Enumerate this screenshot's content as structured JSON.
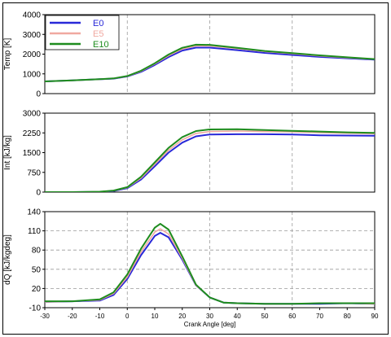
{
  "chart_data": [
    {
      "type": "line",
      "ylabel": "Temp [K]",
      "ylim": [
        0,
        4000
      ],
      "yticks": [
        0,
        1000,
        2000,
        3000,
        4000
      ],
      "xlim": [
        -30,
        90
      ],
      "grid": "vertical-dashed",
      "legend": {
        "placement": "top-left",
        "entries": [
          {
            "label": "E0",
            "color": "#2828d8"
          },
          {
            "label": "E5",
            "color": "#f0a8a0"
          },
          {
            "label": "E10",
            "color": "#1e8c1e"
          }
        ]
      },
      "series": [
        {
          "name": "E0",
          "color": "#2828d8",
          "x": [
            -30,
            -20,
            -10,
            -5,
            0,
            5,
            10,
            15,
            20,
            25,
            30,
            40,
            50,
            60,
            70,
            80,
            90
          ],
          "y": [
            620,
            670,
            730,
            760,
            870,
            1100,
            1450,
            1850,
            2180,
            2330,
            2330,
            2200,
            2060,
            1960,
            1860,
            1790,
            1720
          ]
        },
        {
          "name": "E5",
          "color": "#f0a8a0",
          "x": [
            -30,
            -20,
            -10,
            -5,
            0,
            5,
            10,
            15,
            20,
            25,
            30,
            40,
            50,
            60,
            70,
            80,
            90
          ],
          "y": [
            620,
            670,
            730,
            765,
            880,
            1130,
            1500,
            1920,
            2260,
            2420,
            2420,
            2280,
            2130,
            2020,
            1910,
            1820,
            1740
          ]
        },
        {
          "name": "E10",
          "color": "#1e8c1e",
          "x": [
            -30,
            -20,
            -10,
            -5,
            0,
            5,
            10,
            15,
            20,
            25,
            30,
            40,
            50,
            60,
            70,
            80,
            90
          ],
          "y": [
            620,
            670,
            730,
            770,
            890,
            1160,
            1540,
            1980,
            2320,
            2480,
            2470,
            2320,
            2160,
            2050,
            1940,
            1840,
            1750
          ]
        }
      ]
    },
    {
      "type": "line",
      "ylabel": "Int [kJ/kg]",
      "ylim": [
        0,
        3000
      ],
      "yticks": [
        0,
        750,
        1500,
        2250,
        3000
      ],
      "xlim": [
        -30,
        90
      ],
      "grid": "vertical-dashed",
      "series": [
        {
          "name": "E0",
          "color": "#2828d8",
          "x": [
            -30,
            -20,
            -10,
            -5,
            0,
            5,
            10,
            15,
            20,
            25,
            30,
            40,
            50,
            60,
            70,
            80,
            90
          ],
          "y": [
            0,
            0,
            10,
            40,
            150,
            480,
            980,
            1500,
            1880,
            2120,
            2190,
            2200,
            2200,
            2190,
            2160,
            2150,
            2140
          ]
        },
        {
          "name": "E5",
          "color": "#f0a8a0",
          "x": [
            -30,
            -20,
            -10,
            -5,
            0,
            5,
            10,
            15,
            20,
            25,
            30,
            40,
            50,
            60,
            70,
            80,
            90
          ],
          "y": [
            0,
            0,
            12,
            50,
            170,
            530,
            1060,
            1590,
            1990,
            2230,
            2300,
            2320,
            2300,
            2290,
            2260,
            2240,
            2220
          ]
        },
        {
          "name": "E10",
          "color": "#1e8c1e",
          "x": [
            -30,
            -20,
            -10,
            -5,
            0,
            5,
            10,
            15,
            20,
            25,
            30,
            40,
            50,
            60,
            70,
            80,
            90
          ],
          "y": [
            0,
            0,
            15,
            60,
            190,
            580,
            1130,
            1680,
            2090,
            2320,
            2380,
            2390,
            2360,
            2330,
            2300,
            2270,
            2250
          ]
        }
      ]
    },
    {
      "type": "line",
      "ylabel": "dQ [kJ/kgdeg]",
      "xlabel": "Crank Angle [deg]",
      "ylim": [
        -10,
        140
      ],
      "yticks": [
        -10,
        20,
        50,
        80,
        110,
        140
      ],
      "xlim": [
        -30,
        90
      ],
      "xticks": [
        -30,
        -20,
        -10,
        0,
        10,
        20,
        30,
        40,
        50,
        60,
        70,
        80,
        90
      ],
      "grid": "both-dashed",
      "series": [
        {
          "name": "E0",
          "color": "#2828d8",
          "x": [
            -30,
            -20,
            -10,
            -5,
            0,
            5,
            10,
            12,
            15,
            20,
            25,
            30,
            35,
            40,
            50,
            60,
            70,
            80,
            90
          ],
          "y": [
            -1,
            0,
            1,
            10,
            35,
            72,
            102,
            107,
            100,
            65,
            25,
            6,
            -2,
            -3,
            -4,
            -4,
            -4,
            -3,
            -4
          ]
        },
        {
          "name": "E5",
          "color": "#f0a8a0",
          "x": [
            -30,
            -20,
            -10,
            -5,
            0,
            5,
            10,
            12,
            15,
            20,
            25,
            30,
            35,
            40,
            50,
            60,
            70,
            80,
            90
          ],
          "y": [
            -1,
            0,
            2,
            12,
            38,
            77,
            108,
            113,
            105,
            67,
            25,
            6,
            -2,
            -3,
            -4,
            -4,
            -3,
            -3,
            -4
          ]
        },
        {
          "name": "E10",
          "color": "#1e8c1e",
          "x": [
            -30,
            -20,
            -10,
            -5,
            0,
            5,
            10,
            12,
            15,
            20,
            25,
            30,
            35,
            40,
            50,
            60,
            70,
            80,
            90
          ],
          "y": [
            0,
            0,
            3,
            14,
            42,
            82,
            115,
            121,
            112,
            70,
            26,
            6,
            -2,
            -3,
            -4,
            -4,
            -3,
            -3,
            -3
          ]
        }
      ]
    }
  ]
}
